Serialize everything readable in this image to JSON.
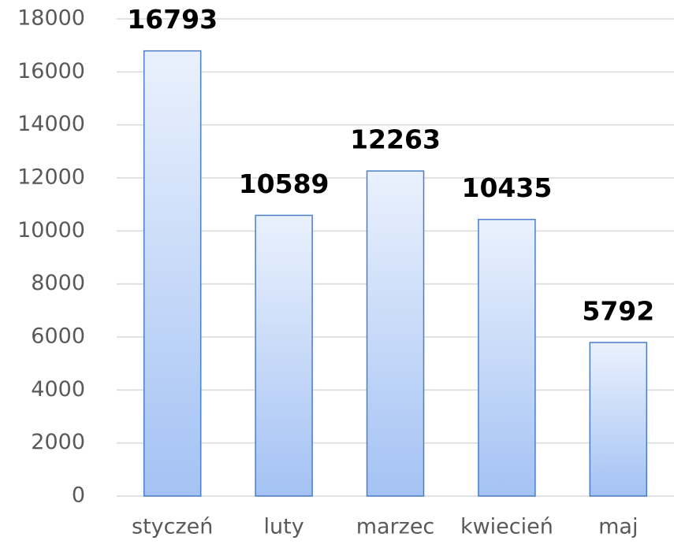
{
  "chart_data": {
    "type": "bar",
    "categories": [
      "styczeń",
      "luty",
      "marzec",
      "kwiecień",
      "maj"
    ],
    "values": [
      16793,
      10589,
      12263,
      10435,
      5792
    ],
    "color": "#a4c2f4",
    "ylim": [
      0,
      18000
    ],
    "yticks": [
      0,
      2000,
      4000,
      6000,
      8000,
      10000,
      12000,
      14000,
      16000,
      18000
    ],
    "grid": true
  }
}
